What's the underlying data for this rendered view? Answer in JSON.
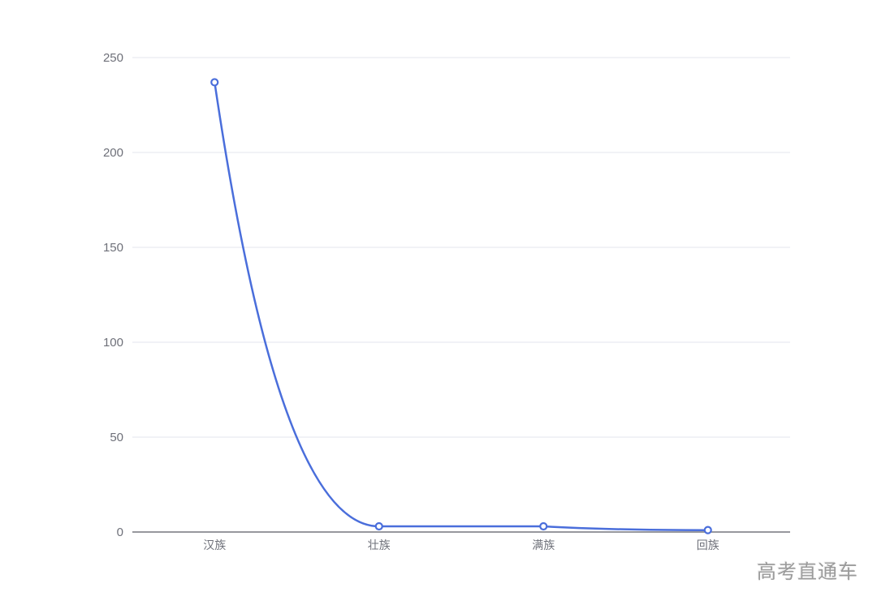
{
  "page": {
    "background": "#ffffff"
  },
  "watermark": {
    "text": "高考直通车",
    "color": "#9b9b9b"
  },
  "chart_data": {
    "type": "line",
    "categories": [
      "汉族",
      "壮族",
      "满族",
      "回族"
    ],
    "values": [
      237,
      3,
      3,
      1
    ],
    "title": "",
    "xlabel": "",
    "ylabel": "",
    "ylim": [
      0,
      250
    ],
    "yticks": [
      0,
      50,
      100,
      150,
      200,
      250
    ],
    "grid": true,
    "legend": false,
    "smooth": true,
    "marker": "empty-circle",
    "line_color": "#4a6edb",
    "marker_fill": "#ffffff",
    "gridline_color": "#e3e5ec",
    "axis_line_color": "#75777e",
    "label_color": "#6e7079"
  }
}
